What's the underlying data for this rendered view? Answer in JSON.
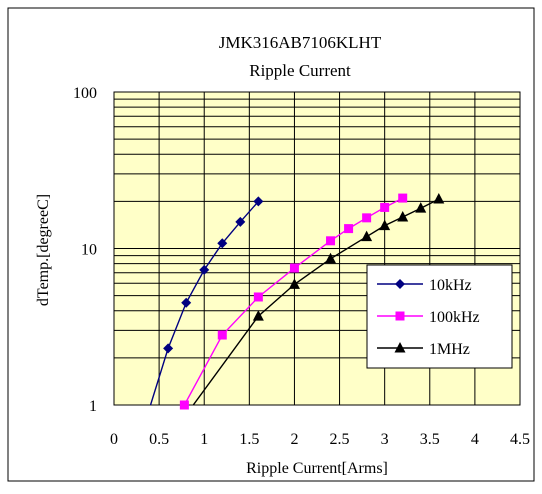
{
  "chart_data": {
    "type": "line",
    "title": "JMK316AB7106KLHT",
    "subtitle": "Ripple Current",
    "xlabel": "Ripple Current[Arms]",
    "ylabel": "dTemp.[degreeC]",
    "x_scale": "linear",
    "y_scale": "log",
    "xlim": [
      0,
      4.5
    ],
    "ylim": [
      1,
      100
    ],
    "x_ticks": [
      "0",
      "0.5",
      "1",
      "1.5",
      "2",
      "2.5",
      "3",
      "3.5",
      "4",
      "4.5"
    ],
    "y_ticks": [
      "1",
      "10",
      "100"
    ],
    "grid": true,
    "legend_position": "right",
    "plot_background": "#FFFFC8",
    "series": [
      {
        "name": "10kHz",
        "color": "#000080",
        "marker": "diamond",
        "x": [
          0.38,
          0.6,
          0.8,
          1.0,
          1.2,
          1.4,
          1.6
        ],
        "y": [
          0.9,
          2.3,
          4.5,
          7.3,
          10.8,
          14.8,
          20
        ]
      },
      {
        "name": "100kHz",
        "color": "#FF00FF",
        "marker": "square",
        "x": [
          0.78,
          1.2,
          1.6,
          2.0,
          2.4,
          2.6,
          2.8,
          3.0,
          3.2
        ],
        "y": [
          1.0,
          2.8,
          4.9,
          7.5,
          11.2,
          13.4,
          15.7,
          18.3,
          21
        ]
      },
      {
        "name": "1MHz",
        "color": "#000000",
        "marker": "triangle",
        "x": [
          0.82,
          1.6,
          2.0,
          2.4,
          2.8,
          3.0,
          3.2,
          3.4,
          3.6
        ],
        "y": [
          0.9,
          3.7,
          5.9,
          8.6,
          11.9,
          14.0,
          15.9,
          18.1,
          20.7
        ]
      }
    ]
  }
}
